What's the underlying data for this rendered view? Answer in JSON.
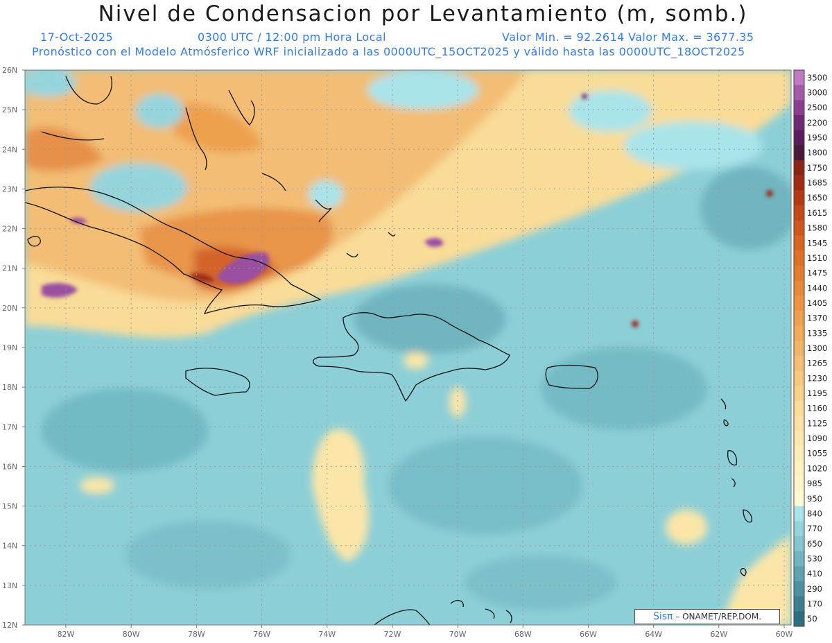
{
  "title": "Nivel de Condensacion por Levantamiento (m, somb.)",
  "header": {
    "date": "17-Oct-2025",
    "time": "0300 UTC / 12:00 pm Hora Local",
    "minmax": "Valor Min. = 92.2614  Valor Max. = 3677.35",
    "model": "Pronóstico con el Modelo Atmósferico WRF inicializado a las 0000UTC_15OCT2025 y válido hasta las  0000UTC_18OCT2025"
  },
  "credit": {
    "brand": "Sisπ",
    "text": "– ONAMET/REP.DOM."
  },
  "axes": {
    "lat_labels": [
      "26N",
      "25N",
      "24N",
      "23N",
      "22N",
      "21N",
      "20N",
      "19N",
      "18N",
      "17N",
      "16N",
      "15N",
      "14N",
      "13N",
      "12N"
    ],
    "lon_labels": [
      "82W",
      "80W",
      "78W",
      "76W",
      "74W",
      "72W",
      "70W",
      "68W",
      "66W",
      "64W",
      "62W",
      "60W"
    ]
  },
  "legend": {
    "levels": [
      "3500",
      "3000",
      "2500",
      "2200",
      "1950",
      "1800",
      "1750",
      "1685",
      "1650",
      "1615",
      "1580",
      "1545",
      "1510",
      "1475",
      "1440",
      "1405",
      "1370",
      "1335",
      "1300",
      "1265",
      "1230",
      "1195",
      "1160",
      "1125",
      "1090",
      "1055",
      "1020",
      "985",
      "950",
      "840",
      "770",
      "650",
      "530",
      "410",
      "290",
      "170",
      "50"
    ],
    "colors": [
      "#c179c4",
      "#a45aa6",
      "#8a3e8d",
      "#6e2a70",
      "#5a1c5c",
      "#4a1838",
      "#8a2414",
      "#a02c14",
      "#b43a14",
      "#c44818",
      "#d0561c",
      "#d86420",
      "#e07028",
      "#e47c30",
      "#e8883a",
      "#ec9444",
      "#eea04e",
      "#f0aa5a",
      "#f2b466",
      "#f4be74",
      "#f6c880",
      "#f8d28c",
      "#fadb98",
      "#fbe2a4",
      "#fce8ae",
      "#fdeeb8",
      "#fdf2c0",
      "#fef6c8",
      "#fffad2",
      "#a9e4ea",
      "#96d4dc",
      "#84c6cf",
      "#70b5c0",
      "#5ea3b0",
      "#4b91a0",
      "#3b7f90",
      "#2c6e80"
    ]
  },
  "colors": {
    "ocean": "#8dcfd7",
    "ocean_dark": "#6fb8c2",
    "warm": "#f7cf86",
    "hot": "#e38a3e",
    "purple": "#9a4fa0",
    "text_blue": "#2f7df0",
    "coast": "#111111"
  }
}
